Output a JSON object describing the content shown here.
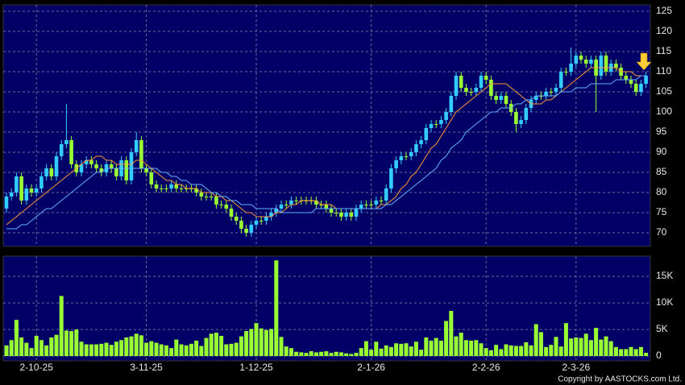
{
  "chart_data": [
    {
      "type": "candlestick",
      "up_color": "#33ccff",
      "down_color": "#99ff33",
      "open": [
        76,
        79,
        80,
        84,
        78,
        81,
        80,
        81,
        84,
        86,
        84,
        89,
        92,
        93,
        87,
        85,
        87,
        88,
        87,
        86,
        85,
        87,
        86,
        84,
        88,
        83,
        90,
        93,
        86,
        85,
        82,
        81,
        81,
        81,
        82,
        81,
        81,
        81,
        81,
        80,
        79,
        79,
        79,
        77,
        77,
        76,
        74,
        73,
        71,
        70,
        72,
        73,
        73,
        74,
        75,
        76,
        77,
        77,
        78,
        78,
        78,
        78,
        78,
        77,
        77,
        76,
        75,
        75,
        74,
        75,
        74,
        76,
        77,
        77,
        77,
        78,
        78,
        81,
        86,
        88,
        89,
        89,
        90,
        92,
        93,
        96,
        97,
        97,
        98,
        100,
        104,
        109,
        106,
        105,
        105,
        106,
        109,
        108,
        104,
        103,
        104,
        102,
        100,
        97,
        98,
        101,
        103,
        104,
        104,
        105,
        105,
        106,
        110,
        110,
        112,
        114,
        113,
        112,
        113,
        109,
        114,
        110,
        112,
        111,
        109,
        108,
        107,
        105,
        107
      ],
      "high": [
        80,
        81,
        85,
        85,
        82,
        82,
        82,
        85,
        87,
        87,
        90,
        93,
        102,
        94,
        88,
        88,
        89,
        89,
        88,
        87,
        88,
        88,
        87,
        89,
        89,
        91,
        95,
        94,
        87,
        86,
        83,
        82,
        82,
        83,
        83,
        82,
        82,
        82,
        82,
        81,
        80,
        80,
        80,
        78,
        78,
        77,
        75,
        74,
        72,
        73,
        74,
        74,
        75,
        76,
        77,
        78,
        78,
        79,
        79,
        79,
        79,
        79,
        79,
        78,
        78,
        77,
        76,
        76,
        76,
        76,
        77,
        78,
        78,
        78,
        79,
        79,
        82,
        87,
        89,
        90,
        90,
        91,
        93,
        94,
        97,
        98,
        98,
        99,
        101,
        105,
        110,
        110,
        107,
        106,
        107,
        110,
        110,
        109,
        105,
        105,
        105,
        103,
        101,
        99,
        102,
        104,
        105,
        105,
        106,
        106,
        107,
        111,
        111,
        116,
        115,
        115,
        114,
        114,
        114,
        115,
        115,
        113,
        113,
        112,
        110,
        109,
        108,
        108,
        110
      ],
      "low": [
        75,
        78,
        79,
        77,
        77,
        79,
        79,
        80,
        83,
        83,
        83,
        88,
        91,
        86,
        84,
        84,
        86,
        86,
        85,
        84,
        84,
        85,
        83,
        83,
        82,
        82,
        89,
        85,
        84,
        81,
        80,
        80,
        80,
        80,
        80,
        80,
        80,
        80,
        79,
        78,
        78,
        78,
        76,
        76,
        75,
        73,
        72,
        70,
        69,
        69,
        71,
        72,
        72,
        73,
        74,
        75,
        76,
        76,
        77,
        77,
        77,
        77,
        76,
        76,
        75,
        74,
        74,
        73,
        73,
        73,
        73,
        75,
        76,
        76,
        76,
        77,
        77,
        80,
        85,
        87,
        88,
        88,
        89,
        91,
        92,
        95,
        96,
        96,
        97,
        99,
        103,
        105,
        104,
        104,
        104,
        105,
        107,
        103,
        102,
        102,
        101,
        99,
        95,
        96,
        97,
        100,
        102,
        103,
        103,
        104,
        104,
        105,
        109,
        109,
        111,
        112,
        111,
        111,
        100,
        108,
        109,
        109,
        110,
        108,
        107,
        106,
        104,
        104,
        106
      ],
      "close": [
        79,
        80,
        84,
        78,
        81,
        80,
        81,
        84,
        86,
        84,
        89,
        92,
        93,
        87,
        85,
        87,
        88,
        87,
        86,
        85,
        87,
        86,
        84,
        88,
        83,
        90,
        93,
        86,
        85,
        82,
        81,
        81,
        81,
        82,
        81,
        81,
        81,
        81,
        80,
        79,
        79,
        79,
        77,
        77,
        76,
        74,
        73,
        71,
        70,
        72,
        73,
        73,
        74,
        75,
        76,
        77,
        77,
        78,
        78,
        78,
        78,
        78,
        77,
        77,
        76,
        75,
        75,
        74,
        75,
        74,
        76,
        77,
        77,
        77,
        78,
        78,
        81,
        86,
        88,
        89,
        89,
        90,
        92,
        93,
        96,
        97,
        97,
        98,
        100,
        104,
        109,
        106,
        105,
        105,
        106,
        109,
        108,
        104,
        103,
        104,
        102,
        100,
        97,
        98,
        101,
        103,
        104,
        104,
        105,
        105,
        106,
        110,
        110,
        112,
        114,
        113,
        112,
        113,
        109,
        114,
        110,
        112,
        111,
        109,
        108,
        107,
        105,
        107,
        109
      ],
      "overlays": [
        {
          "color": "#ff9933",
          "values": [
            72,
            73,
            74,
            75,
            76,
            77,
            78,
            79,
            80,
            81,
            82,
            83,
            84,
            85,
            86,
            87,
            88,
            88,
            89,
            89,
            88,
            88,
            87,
            87,
            87,
            87,
            88,
            88,
            87,
            86,
            85,
            84,
            83,
            83,
            82,
            82,
            81,
            81,
            81,
            80,
            80,
            80,
            79,
            79,
            78,
            78,
            77,
            76,
            75,
            75,
            74,
            74,
            74,
            74,
            75,
            75,
            76,
            77,
            77,
            78,
            78,
            78,
            78,
            77,
            77,
            77,
            76,
            76,
            76,
            76,
            76,
            76,
            76,
            76,
            76,
            77,
            77,
            78,
            79,
            81,
            82,
            84,
            85,
            87,
            89,
            91,
            92,
            94,
            96,
            98,
            100,
            101,
            102,
            103,
            104,
            105,
            106,
            107,
            107,
            107,
            107,
            106,
            105,
            104,
            103,
            102,
            102,
            102,
            103,
            103,
            104,
            105,
            106,
            107,
            108,
            109,
            110,
            111,
            111,
            111,
            111,
            111,
            111,
            110,
            110,
            110,
            109,
            109,
            109
          ]
        },
        {
          "color": "#66b3ff",
          "values": [
            71,
            71,
            71,
            72,
            72,
            73,
            74,
            75,
            76,
            76,
            77,
            78,
            79,
            80,
            81,
            82,
            83,
            84,
            85,
            85,
            86,
            86,
            86,
            86,
            86,
            86,
            86,
            86,
            86,
            86,
            86,
            85,
            85,
            84,
            84,
            83,
            83,
            82,
            82,
            82,
            81,
            80,
            80,
            79,
            79,
            78,
            78,
            77,
            77,
            77,
            76,
            76,
            76,
            76,
            76,
            75,
            75,
            75,
            75,
            75,
            75,
            75,
            76,
            76,
            76,
            76,
            76,
            76,
            76,
            76,
            76,
            76,
            76,
            76,
            76,
            76,
            77,
            77,
            78,
            79,
            80,
            81,
            82,
            83,
            84,
            85,
            86,
            88,
            89,
            91,
            92,
            93,
            95,
            96,
            97,
            98,
            99,
            100,
            100,
            101,
            101,
            101,
            102,
            102,
            103,
            103,
            104,
            104,
            104,
            104,
            104,
            105,
            105,
            105,
            106,
            106,
            106,
            107,
            107,
            107,
            107,
            107,
            108,
            108,
            108,
            108,
            108,
            109,
            109
          ]
        }
      ],
      "ylim": [
        66.6,
        126.6
      ],
      "yticks": [
        70,
        75,
        80,
        85,
        90,
        95,
        100,
        105,
        110,
        115,
        120,
        125
      ],
      "grid": true
    },
    {
      "type": "bar",
      "color": "#99ff33",
      "categories": [
        null,
        null,
        null,
        null,
        null,
        null,
        "2-10-25",
        null,
        null,
        null,
        null,
        null,
        null,
        null,
        null,
        null,
        null,
        null,
        null,
        null,
        null,
        null,
        null,
        null,
        null,
        null,
        null,
        null,
        "3-11-25",
        null,
        null,
        null,
        null,
        null,
        null,
        null,
        null,
        null,
        null,
        null,
        null,
        null,
        null,
        null,
        null,
        null,
        null,
        null,
        null,
        null,
        "1-12-25",
        null,
        null,
        null,
        null,
        null,
        null,
        null,
        null,
        null,
        null,
        null,
        null,
        null,
        null,
        null,
        null,
        null,
        null,
        null,
        null,
        null,
        null,
        "2-1-26",
        null,
        null,
        null,
        null,
        null,
        null,
        null,
        null,
        null,
        null,
        null,
        null,
        null,
        null,
        null,
        null,
        null,
        null,
        null,
        null,
        null,
        null,
        "2-2-26",
        null,
        null,
        null,
        null,
        null,
        null,
        null,
        null,
        null,
        null,
        null,
        null,
        null,
        null,
        null,
        null,
        null,
        "2-3-26",
        null,
        null,
        null,
        null,
        null,
        null,
        null,
        null,
        null,
        null,
        null,
        null,
        null,
        null
      ],
      "values": [
        2000,
        3000,
        6800,
        3500,
        2500,
        1500,
        3800,
        3000,
        2000,
        3500,
        4000,
        11300,
        4800,
        4700,
        5000,
        2700,
        2200,
        2200,
        2200,
        2300,
        2500,
        2100,
        2700,
        3000,
        3500,
        3700,
        4200,
        3900,
        2500,
        2800,
        2500,
        2200,
        2000,
        1500,
        3100,
        2200,
        2000,
        2300,
        2900,
        1900,
        3400,
        4200,
        4400,
        3800,
        2200,
        2300,
        2500,
        3700,
        4700,
        5100,
        6200,
        5200,
        4900,
        5100,
        18000,
        3600,
        1800,
        1500,
        800,
        700,
        600,
        900,
        700,
        800,
        900,
        600,
        800,
        700,
        500,
        400,
        600,
        1500,
        2800,
        1200,
        2700,
        1400,
        2000,
        1700,
        2400,
        2300,
        2400,
        1800,
        2700,
        1200,
        3500,
        2900,
        3400,
        2900,
        6600,
        8500,
        3700,
        4400,
        3000,
        2900,
        3000,
        2400,
        1500,
        1100,
        2100,
        1300,
        2200,
        2000,
        1900,
        1900,
        2600,
        2000,
        6000,
        4500,
        1700,
        2100,
        3600,
        1800,
        6200,
        3300,
        3500,
        3400,
        4200,
        3000,
        5300,
        3100,
        3700,
        2800,
        1700,
        1300,
        1300,
        1700,
        1300,
        1700,
        600
      ],
      "ylim": [
        -900,
        18800
      ],
      "yticks": [
        0,
        {
          "value": 5000,
          "label": "5K"
        },
        {
          "value": 10000,
          "label": "10K"
        },
        {
          "value": 15000,
          "label": "15K"
        }
      ],
      "grid": true
    }
  ],
  "footer": "Copyright by AASTOCKS.com Ltd."
}
